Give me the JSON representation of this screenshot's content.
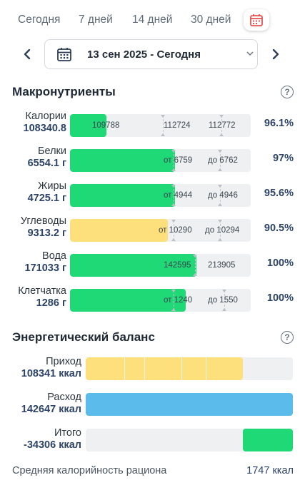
{
  "tabs": [
    {
      "label": "Сегодня"
    },
    {
      "label": "7 дней"
    },
    {
      "label": "14 дней"
    },
    {
      "label": "30 дней"
    }
  ],
  "date_selector": {
    "value": "13 сен 2025 - Сегодня"
  },
  "macros": {
    "title": "Макронутриенты",
    "rows": [
      {
        "name": "Калории",
        "value": "108340.8",
        "pct": "96.1%",
        "fill_fraction": 0.2,
        "color": "#1fd876",
        "marks": [
          {
            "text": "109788"
          },
          {
            "text": "112724"
          },
          {
            "text": "112772"
          }
        ]
      },
      {
        "name": "Белки",
        "value": "6554.1 г",
        "pct": "97%",
        "fill_fraction": 0.58,
        "color": "#1fd876",
        "marks": [
          {
            "text": "от 6759"
          },
          {
            "text": "до 6762"
          }
        ]
      },
      {
        "name": "Жиры",
        "value": "4725.1 г",
        "pct": "95.6%",
        "fill_fraction": 0.58,
        "color": "#1fd876",
        "marks": [
          {
            "text": "от 4944"
          },
          {
            "text": "до 4946"
          }
        ]
      },
      {
        "name": "Углеводы",
        "value": "9313.2 г",
        "pct": "90.5%",
        "fill_fraction": 0.54,
        "color": "#fde07c",
        "marks": [
          {
            "text": "от 10290"
          },
          {
            "text": "до 10294"
          }
        ]
      },
      {
        "name": "Вода",
        "value": "171033 г",
        "pct": "100%",
        "fill_fraction": 0.7,
        "color": "#1fd876",
        "marks": [
          {
            "text": "142595"
          },
          {
            "text": "213905"
          }
        ]
      },
      {
        "name": "Клетчатка",
        "value": "1286 г",
        "pct": "100%",
        "fill_fraction": 0.64,
        "color": "#1fd876",
        "marks": [
          {
            "text": "от 1240"
          },
          {
            "text": "до 1550"
          }
        ]
      }
    ]
  },
  "energy": {
    "title": "Энергетический баланс",
    "rows": [
      {
        "name": "Приход",
        "value": "108341 ккал",
        "color": "#fde07c",
        "fill_fraction": 0.76
      },
      {
        "name": "Расход",
        "value": "142647 ккал",
        "color": "#5bbcec",
        "fill_fraction": 1.0
      },
      {
        "name": "Итого",
        "value": "-34306 ккал",
        "color": "#1fd876",
        "fill_fraction": 0.24
      }
    ]
  },
  "footer": {
    "label": "Средняя калорийность рациона",
    "value": "1747 ккал"
  }
}
